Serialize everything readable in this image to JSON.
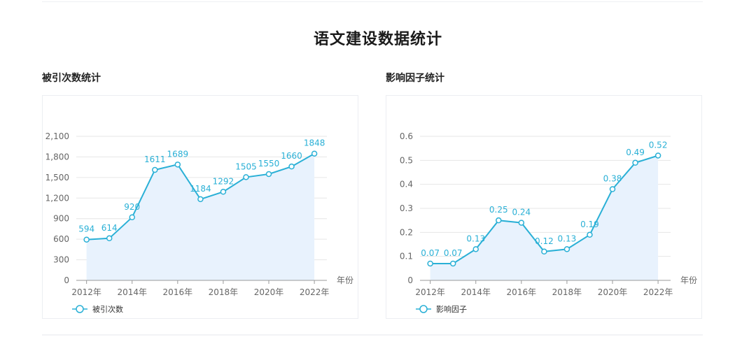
{
  "page": {
    "title": "语文建设数据统计"
  },
  "chart_data": [
    {
      "type": "line",
      "title": "被引次数统计",
      "xlabel": "年份",
      "x_ticks": [
        "2012年",
        "2014年",
        "2016年",
        "2018年",
        "2020年",
        "2022年"
      ],
      "y_ticks": [
        "0",
        "300",
        "600",
        "900",
        "1,200",
        "1,500",
        "1,800",
        "2,100"
      ],
      "ylim": [
        0,
        2100
      ],
      "series": [
        {
          "name": "被引次数",
          "x": [
            2012,
            2013,
            2014,
            2015,
            2016,
            2017,
            2018,
            2019,
            2020,
            2021,
            2022
          ],
          "values": [
            594,
            614,
            920,
            1611,
            1689,
            1184,
            1292,
            1505,
            1550,
            1660,
            1848
          ],
          "labels": [
            "594",
            "614",
            "920",
            "1611",
            "1689",
            "1184",
            "1292",
            "1505",
            "1550",
            "1660",
            "1848"
          ]
        }
      ],
      "legend": "bottom-left",
      "grid": true,
      "colors": {
        "line": "#2ab0d6",
        "area": "#e8f2fd",
        "label": "#2ab0d6"
      }
    },
    {
      "type": "line",
      "title": "影响因子统计",
      "xlabel": "年份",
      "x_ticks": [
        "2012年",
        "2014年",
        "2016年",
        "2018年",
        "2020年",
        "2022年"
      ],
      "y_ticks": [
        "0",
        "0.1",
        "0.2",
        "0.3",
        "0.4",
        "0.5",
        "0.6"
      ],
      "ylim": [
        0,
        0.6
      ],
      "series": [
        {
          "name": "影响因子",
          "x": [
            2012,
            2013,
            2014,
            2015,
            2016,
            2017,
            2018,
            2019,
            2020,
            2021,
            2022
          ],
          "values": [
            0.07,
            0.07,
            0.13,
            0.25,
            0.24,
            0.12,
            0.13,
            0.19,
            0.38,
            0.49,
            0.52
          ],
          "labels": [
            "0.07",
            "0.07",
            "0.13",
            "0.25",
            "0.24",
            "0.12",
            "0.13",
            "0.19",
            "0.38",
            "0.49",
            "0.52"
          ]
        }
      ],
      "legend": "bottom-left",
      "grid": true,
      "colors": {
        "line": "#2ab0d6",
        "area": "#e8f2fd",
        "label": "#2ab0d6"
      }
    }
  ]
}
